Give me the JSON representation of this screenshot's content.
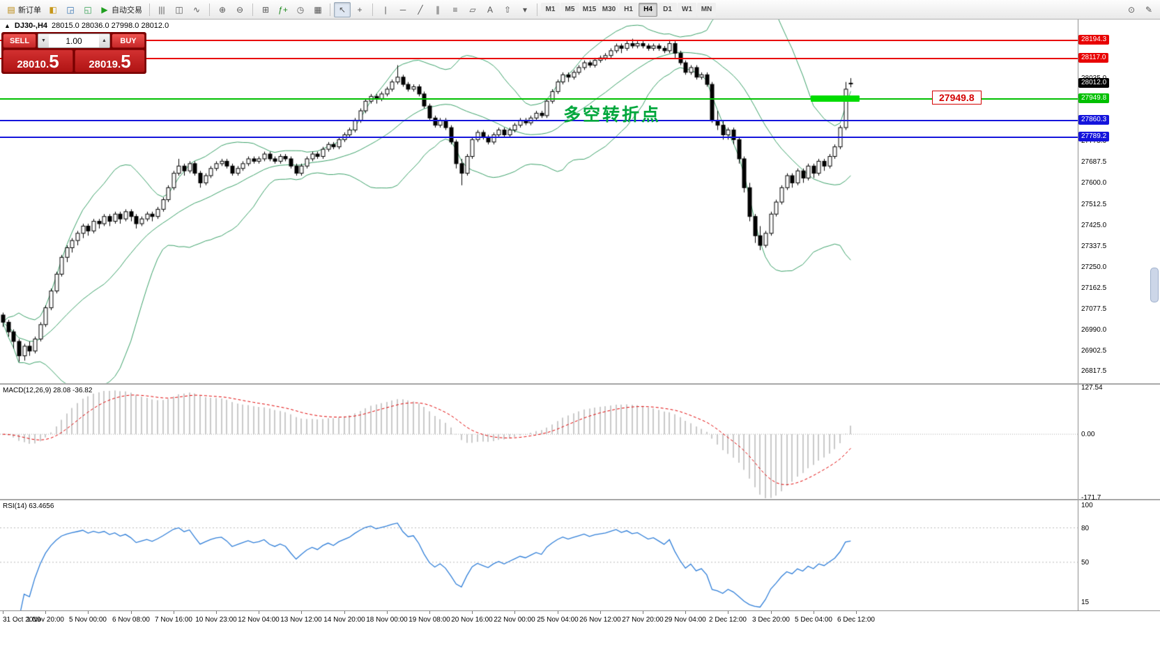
{
  "toolbar": {
    "new_order_label": "新订单",
    "new_order_icon": "▤",
    "auto_trading_label": "自动交易",
    "auto_trading_icon": "▶",
    "standard_icons": [
      {
        "name": "metaeditor-icon",
        "glyph": "◧",
        "color": "#c79618"
      },
      {
        "name": "market-watch-icon",
        "glyph": "◲",
        "color": "#2f6fb0"
      },
      {
        "name": "navigator-icon",
        "glyph": "◱",
        "color": "#2f9e4f"
      }
    ],
    "chart_icons": [
      {
        "name": "bar-chart-icon",
        "glyph": "|||"
      },
      {
        "name": "candlestick-chart-icon",
        "glyph": "◫"
      },
      {
        "name": "line-chart-icon",
        "glyph": "∿"
      },
      {
        "name": "sep"
      },
      {
        "name": "zoom-in-icon",
        "glyph": "⊕"
      },
      {
        "name": "zoom-out-icon",
        "glyph": "⊖"
      },
      {
        "name": "sep"
      },
      {
        "name": "tile-windows-icon",
        "glyph": "⊞"
      },
      {
        "name": "indicators-icon",
        "glyph": "ƒ+",
        "color": "#1f8a1f"
      },
      {
        "name": "periods-icon",
        "glyph": "◷"
      },
      {
        "name": "templates-icon",
        "glyph": "▦"
      }
    ],
    "line_study_icons": [
      {
        "name": "cursor-icon",
        "glyph": "↖",
        "active": true
      },
      {
        "name": "crosshair-icon",
        "glyph": "+"
      },
      {
        "name": "sep"
      },
      {
        "name": "vertical-line-icon",
        "glyph": "|"
      },
      {
        "name": "horizontal-line-icon",
        "glyph": "─"
      },
      {
        "name": "trendline-icon",
        "glyph": "╱"
      },
      {
        "name": "channel-icon",
        "glyph": "∥"
      },
      {
        "name": "fibonacci-icon",
        "glyph": "≡"
      },
      {
        "name": "shapes-icon",
        "glyph": "▱"
      },
      {
        "name": "text-icon",
        "glyph": "A"
      },
      {
        "name": "arrows-icon",
        "glyph": "⇧"
      },
      {
        "name": "dropdown-icon",
        "glyph": "▾"
      }
    ],
    "timeframes": [
      {
        "label": "M1"
      },
      {
        "label": "M5"
      },
      {
        "label": "M15"
      },
      {
        "label": "M30"
      },
      {
        "label": "H1"
      },
      {
        "label": "H4",
        "active": true
      },
      {
        "label": "D1"
      },
      {
        "label": "W1"
      },
      {
        "label": "MN"
      }
    ],
    "right_icons": [
      {
        "name": "search-icon",
        "glyph": "⊙"
      },
      {
        "name": "edit-icon",
        "glyph": "✎"
      }
    ]
  },
  "chart": {
    "collapse_arrow": "▲",
    "symbol_title": "DJ30-,H4",
    "ohlc_text": "28015.0 28036.0 27998.0 28012.0",
    "annotation_text": "多空转折点",
    "floating_price_label": "27949.8",
    "one_click": {
      "sell_label": "SELL",
      "buy_label": "BUY",
      "volume": "1.00",
      "vol_down": "▼",
      "vol_up": "▲",
      "bid_main": "28010.",
      "bid_big": "5",
      "ask_main": "28019.",
      "ask_big": "5"
    }
  },
  "chart_data": {
    "type": "candlestick",
    "symbol": "DJ30-",
    "timeframe": "H4",
    "current_ohlc": {
      "open": 28015.0,
      "high": 28036.0,
      "low": 27998.0,
      "close": 28012.0
    },
    "ylim": [
      26760,
      28280
    ],
    "y_ticks": [
      28035.0,
      27775.0,
      27687.5,
      27600.0,
      27512.5,
      27425.0,
      27337.5,
      27250.0,
      27162.5,
      27077.5,
      26990.0,
      26902.5,
      26817.5
    ],
    "current_price": {
      "value": 28012.0,
      "label": "28012.0"
    },
    "levels": [
      {
        "name": "resistance-line-upper",
        "value": 28194.3,
        "label": "28194.3",
        "color": "#e80000",
        "width": 2
      },
      {
        "name": "resistance-line-lower",
        "value": 28117.0,
        "label": "28117.0",
        "color": "#e80000",
        "width": 2
      },
      {
        "name": "turning-point-line",
        "value": 27949.8,
        "label": "27949.8",
        "color": "#00c000",
        "width": 2
      },
      {
        "name": "support-line-upper",
        "value": 27860.3,
        "label": "27860.3",
        "color": "#1414dc",
        "width": 2
      },
      {
        "name": "support-line-lower",
        "value": 27789.2,
        "label": "27789.2",
        "color": "#1414dc",
        "width": 2
      }
    ],
    "highlight": {
      "price": 27949.8,
      "start_index": 152,
      "color": "#00dc00"
    },
    "bollinger": {
      "period": 20,
      "deviation": 2,
      "color": "#3aa068"
    },
    "macd": {
      "label": "MACD(12,26,9) 28.08 -36.82",
      "fast": 12,
      "slow": 26,
      "signal": 9,
      "value": 28.08,
      "signal_value": -36.82,
      "ylim": [
        -180,
        135
      ],
      "ticks": [
        {
          "v": 127.54,
          "t": "127.54"
        },
        {
          "v": 0,
          "t": "0.00"
        },
        {
          "v": -171.7,
          "t": "-171.7"
        }
      ],
      "histogram_color": "#c9c9c9",
      "signal_color": "#e00000"
    },
    "rsi": {
      "label": "RSI(14) 63.4656",
      "period": 14,
      "value": 63.4656,
      "ylim": [
        8,
        104
      ],
      "ticks": [
        100,
        80,
        50,
        15
      ],
      "level_lines": [
        80,
        50
      ],
      "color": "#2f7ed8"
    },
    "time_label_step": 8,
    "time_labels": [
      "31 Oct 2019",
      "1 Nov 20:00",
      "5 Nov 00:00",
      "6 Nov 08:00",
      "7 Nov 16:00",
      "10 Nov 23:00",
      "12 Nov 04:00",
      "13 Nov 12:00",
      "14 Nov 20:00",
      "18 Nov 00:00",
      "19 Nov 08:00",
      "20 Nov 16:00",
      "22 Nov 00:00",
      "25 Nov 04:00",
      "26 Nov 12:00",
      "27 Nov 20:00",
      "29 Nov 04:00",
      "2 Dec 12:00",
      "3 Dec 20:00",
      "5 Dec 04:00",
      "6 Dec 12:00"
    ],
    "ohlc": [
      [
        27050,
        27060,
        27000,
        27020
      ],
      [
        27020,
        27030,
        26960,
        26980
      ],
      [
        26980,
        26990,
        26910,
        26940
      ],
      [
        26940,
        26950,
        26855,
        26880
      ],
      [
        26880,
        26930,
        26860,
        26920
      ],
      [
        26920,
        26940,
        26880,
        26900
      ],
      [
        26900,
        26960,
        26890,
        26950
      ],
      [
        26950,
        27020,
        26940,
        27010
      ],
      [
        27010,
        27090,
        27000,
        27080
      ],
      [
        27080,
        27160,
        27070,
        27150
      ],
      [
        27150,
        27230,
        27140,
        27220
      ],
      [
        27220,
        27300,
        27210,
        27290
      ],
      [
        27290,
        27340,
        27270,
        27330
      ],
      [
        27330,
        27370,
        27310,
        27360
      ],
      [
        27360,
        27400,
        27340,
        27390
      ],
      [
        27390,
        27430,
        27370,
        27420
      ],
      [
        27420,
        27430,
        27380,
        27400
      ],
      [
        27400,
        27450,
        27390,
        27440
      ],
      [
        27440,
        27450,
        27410,
        27430
      ],
      [
        27430,
        27470,
        27420,
        27460
      ],
      [
        27460,
        27470,
        27420,
        27440
      ],
      [
        27440,
        27480,
        27430,
        27470
      ],
      [
        27470,
        27480,
        27430,
        27450
      ],
      [
        27450,
        27490,
        27440,
        27480
      ],
      [
        27480,
        27490,
        27440,
        27460
      ],
      [
        27460,
        27470,
        27410,
        27430
      ],
      [
        27430,
        27460,
        27420,
        27450
      ],
      [
        27450,
        27480,
        27440,
        27470
      ],
      [
        27470,
        27480,
        27440,
        27460
      ],
      [
        27460,
        27500,
        27450,
        27490
      ],
      [
        27490,
        27540,
        27480,
        27530
      ],
      [
        27530,
        27590,
        27520,
        27580
      ],
      [
        27580,
        27650,
        27570,
        27640
      ],
      [
        27640,
        27700,
        27630,
        27670
      ],
      [
        27670,
        27680,
        27630,
        27650
      ],
      [
        27650,
        27690,
        27640,
        27680
      ],
      [
        27680,
        27690,
        27630,
        27640
      ],
      [
        27640,
        27650,
        27580,
        27600
      ],
      [
        27600,
        27640,
        27590,
        27630
      ],
      [
        27630,
        27670,
        27620,
        27660
      ],
      [
        27660,
        27690,
        27650,
        27680
      ],
      [
        27680,
        27700,
        27670,
        27690
      ],
      [
        27690,
        27700,
        27660,
        27670
      ],
      [
        27670,
        27680,
        27630,
        27640
      ],
      [
        27640,
        27670,
        27630,
        27660
      ],
      [
        27660,
        27690,
        27650,
        27680
      ],
      [
        27680,
        27710,
        27670,
        27700
      ],
      [
        27700,
        27710,
        27680,
        27690
      ],
      [
        27690,
        27710,
        27680,
        27700
      ],
      [
        27700,
        27730,
        27690,
        27720
      ],
      [
        27720,
        27730,
        27690,
        27700
      ],
      [
        27700,
        27710,
        27680,
        27690
      ],
      [
        27690,
        27720,
        27680,
        27710
      ],
      [
        27710,
        27720,
        27690,
        27700
      ],
      [
        27700,
        27710,
        27660,
        27670
      ],
      [
        27670,
        27680,
        27630,
        27640
      ],
      [
        27640,
        27680,
        27630,
        27670
      ],
      [
        27670,
        27710,
        27660,
        27700
      ],
      [
        27700,
        27730,
        27690,
        27720
      ],
      [
        27720,
        27730,
        27700,
        27710
      ],
      [
        27710,
        27750,
        27700,
        27740
      ],
      [
        27740,
        27770,
        27730,
        27760
      ],
      [
        27760,
        27770,
        27740,
        27750
      ],
      [
        27750,
        27790,
        27740,
        27780
      ],
      [
        27780,
        27810,
        27770,
        27800
      ],
      [
        27800,
        27830,
        27790,
        27820
      ],
      [
        27820,
        27870,
        27810,
        27860
      ],
      [
        27860,
        27910,
        27850,
        27900
      ],
      [
        27900,
        27950,
        27890,
        27940
      ],
      [
        27940,
        27970,
        27930,
        27960
      ],
      [
        27960,
        27970,
        27930,
        27950
      ],
      [
        27950,
        27980,
        27940,
        27970
      ],
      [
        27970,
        28000,
        27960,
        27990
      ],
      [
        27990,
        28030,
        27980,
        28020
      ],
      [
        28020,
        28090,
        28010,
        28040
      ],
      [
        28040,
        28050,
        28000,
        28010
      ],
      [
        28010,
        28020,
        27980,
        27990
      ],
      [
        27990,
        28010,
        27980,
        28000
      ],
      [
        28000,
        28010,
        27960,
        27970
      ],
      [
        27970,
        27980,
        27910,
        27920
      ],
      [
        27920,
        27930,
        27860,
        27870
      ],
      [
        27870,
        27880,
        27830,
        27840
      ],
      [
        27840,
        27870,
        27830,
        27860
      ],
      [
        27860,
        27870,
        27820,
        27830
      ],
      [
        27830,
        27840,
        27760,
        27770
      ],
      [
        27770,
        27780,
        27660,
        27680
      ],
      [
        27680,
        27700,
        27590,
        27640
      ],
      [
        27640,
        27720,
        27630,
        27710
      ],
      [
        27710,
        27790,
        27700,
        27780
      ],
      [
        27780,
        27820,
        27770,
        27810
      ],
      [
        27810,
        27820,
        27780,
        27790
      ],
      [
        27790,
        27800,
        27760,
        27770
      ],
      [
        27770,
        27810,
        27760,
        27800
      ],
      [
        27800,
        27830,
        27790,
        27820
      ],
      [
        27820,
        27830,
        27790,
        27800
      ],
      [
        27800,
        27830,
        27790,
        27820
      ],
      [
        27820,
        27850,
        27810,
        27840
      ],
      [
        27840,
        27870,
        27830,
        27860
      ],
      [
        27860,
        27870,
        27840,
        27850
      ],
      [
        27850,
        27880,
        27840,
        27870
      ],
      [
        27870,
        27900,
        27860,
        27890
      ],
      [
        27890,
        27900,
        27870,
        27880
      ],
      [
        27880,
        27950,
        27870,
        27940
      ],
      [
        27940,
        27990,
        27930,
        27980
      ],
      [
        27980,
        28030,
        27970,
        28020
      ],
      [
        28020,
        28060,
        28010,
        28050
      ],
      [
        28050,
        28060,
        28020,
        28040
      ],
      [
        28040,
        28070,
        28030,
        28060
      ],
      [
        28060,
        28090,
        28050,
        28080
      ],
      [
        28080,
        28110,
        28070,
        28100
      ],
      [
        28100,
        28110,
        28080,
        28090
      ],
      [
        28090,
        28120,
        28080,
        28110
      ],
      [
        28110,
        28130,
        28100,
        28120
      ],
      [
        28120,
        28140,
        28110,
        28130
      ],
      [
        28130,
        28160,
        28120,
        28150
      ],
      [
        28150,
        28180,
        28140,
        28170
      ],
      [
        28170,
        28180,
        28140,
        28160
      ],
      [
        28160,
        28190,
        28150,
        28180
      ],
      [
        28180,
        28200,
        28160,
        28170
      ],
      [
        28170,
        28190,
        28160,
        28180
      ],
      [
        28180,
        28190,
        28160,
        28170
      ],
      [
        28170,
        28180,
        28150,
        28160
      ],
      [
        28160,
        28180,
        28150,
        28170
      ],
      [
        28170,
        28180,
        28150,
        28160
      ],
      [
        28160,
        28170,
        28140,
        28150
      ],
      [
        28150,
        28195,
        28140,
        28180
      ],
      [
        28180,
        28190,
        28120,
        28140
      ],
      [
        28140,
        28150,
        28090,
        28100
      ],
      [
        28100,
        28110,
        28050,
        28060
      ],
      [
        28060,
        28090,
        28050,
        28080
      ],
      [
        28080,
        28090,
        28030,
        28040
      ],
      [
        28040,
        28060,
        28030,
        28050
      ],
      [
        28050,
        28060,
        28000,
        28010
      ],
      [
        28010,
        28020,
        27850,
        27860
      ],
      [
        27860,
        27900,
        27820,
        27840
      ],
      [
        27840,
        27860,
        27780,
        27800
      ],
      [
        27800,
        27830,
        27780,
        27820
      ],
      [
        27820,
        27830,
        27760,
        27780
      ],
      [
        27780,
        27790,
        27680,
        27700
      ],
      [
        27700,
        27710,
        27560,
        27580
      ],
      [
        27580,
        27600,
        27440,
        27460
      ],
      [
        27460,
        27470,
        27350,
        27380
      ],
      [
        27380,
        27420,
        27320,
        27340
      ],
      [
        27340,
        27400,
        27330,
        27390
      ],
      [
        27390,
        27480,
        27380,
        27470
      ],
      [
        27470,
        27530,
        27460,
        27520
      ],
      [
        27520,
        27590,
        27510,
        27580
      ],
      [
        27580,
        27640,
        27570,
        27630
      ],
      [
        27630,
        27640,
        27580,
        27600
      ],
      [
        27600,
        27660,
        27590,
        27650
      ],
      [
        27650,
        27660,
        27600,
        27620
      ],
      [
        27620,
        27680,
        27610,
        27670
      ],
      [
        27670,
        27680,
        27620,
        27640
      ],
      [
        27640,
        27700,
        27630,
        27690
      ],
      [
        27690,
        27700,
        27650,
        27670
      ],
      [
        27670,
        27720,
        27660,
        27710
      ],
      [
        27710,
        27760,
        27700,
        27750
      ],
      [
        27750,
        27840,
        27740,
        27830
      ],
      [
        27830,
        28020,
        27820,
        27990
      ],
      [
        28015,
        28036,
        27998,
        28012
      ]
    ]
  }
}
